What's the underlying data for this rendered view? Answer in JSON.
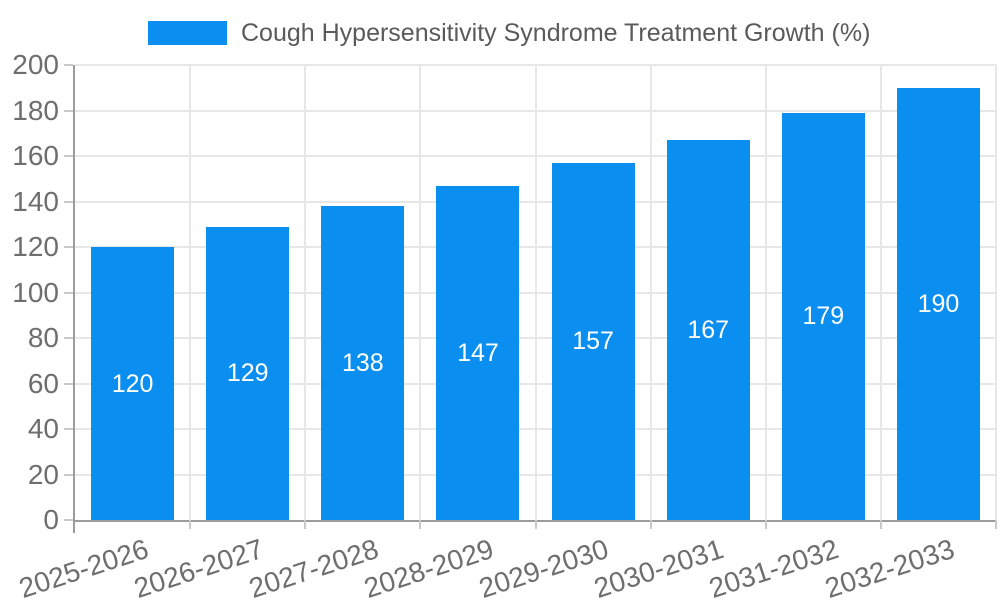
{
  "chart_data": {
    "type": "bar",
    "title": "Cough Hypersensitivity Syndrome Treatment Growth (%)",
    "categories": [
      "2025-2026",
      "2026-2027",
      "2027-2028",
      "2028-2029",
      "2029-2030",
      "2030-2031",
      "2031-2032",
      "2032-2033"
    ],
    "values": [
      120,
      129,
      138,
      147,
      157,
      167,
      179,
      190
    ],
    "ytick_labels": [
      "0",
      "20",
      "40",
      "60",
      "80",
      "100",
      "120",
      "140",
      "160",
      "180",
      "200"
    ],
    "ylim": [
      0,
      200
    ],
    "ytick_step": 20,
    "xlabel": "",
    "ylabel": "",
    "grid": true,
    "legend_position": "top",
    "x_tick_rotation_deg": -18
  },
  "colors": {
    "background": "#FFFFFF",
    "bar": "#0A8FF0",
    "grid": "#E7E7E7",
    "axis": "#9C9C9C",
    "tick": "#C9C9C9",
    "axis_label": "#6E6E6E",
    "legend_text": "#5A5A5A",
    "value_label": "#FFFFFF"
  }
}
